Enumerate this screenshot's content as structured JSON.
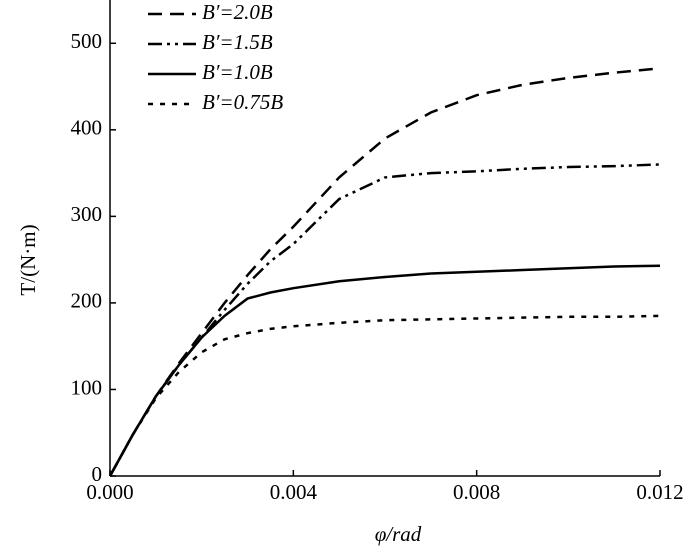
{
  "chart_data": {
    "type": "line",
    "xlabel": "φ/rad",
    "ylabel": "T/(N·m)",
    "x": [
      0,
      0.0005,
      0.001,
      0.0015,
      0.002,
      0.0025,
      0.003,
      0.0035,
      0.004,
      0.005,
      0.006,
      0.007,
      0.008,
      0.009,
      0.01,
      0.011,
      0.012
    ],
    "series": [
      {
        "name": "B′=2.0B",
        "color": "#000000",
        "values": [
          0,
          48,
          92,
          130,
          165,
          200,
          232,
          262,
          288,
          345,
          390,
          420,
          440,
          452,
          460,
          466,
          471
        ]
      },
      {
        "name": "B′=1.5B",
        "color": "#000000",
        "values": [
          0,
          48,
          92,
          128,
          160,
          192,
          222,
          248,
          268,
          320,
          345,
          350,
          352,
          355,
          357,
          358,
          360
        ]
      },
      {
        "name": "B′=1.0B",
        "color": "#000000",
        "values": [
          0,
          48,
          92,
          128,
          160,
          185,
          205,
          212,
          217,
          225,
          230,
          234,
          236,
          238,
          240,
          242,
          243
        ]
      },
      {
        "name": "B′=0.75B",
        "color": "#000000",
        "values": [
          0,
          48,
          90,
          120,
          143,
          158,
          165,
          170,
          173,
          177,
          180,
          181,
          182,
          183,
          184,
          184,
          185
        ]
      }
    ],
    "xlim": [
      0,
      0.012
    ],
    "xticks": [
      {
        "value": 0,
        "label": "0.000"
      },
      {
        "value": 0.004,
        "label": "0.004"
      },
      {
        "value": 0.008,
        "label": "0.008"
      },
      {
        "value": 0.012,
        "label": "0.012"
      }
    ],
    "ylim": [
      0,
      550
    ],
    "yticks": [
      0,
      100,
      200,
      300,
      400,
      500
    ],
    "legend": "top-left"
  }
}
